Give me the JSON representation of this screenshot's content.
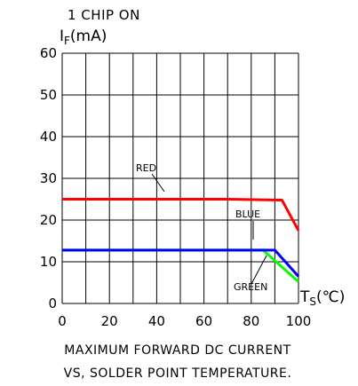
{
  "chart_data": {
    "type": "line",
    "header": "1 CHIP ON",
    "ylabel": "I",
    "ylabel_sub": "F",
    "ylabel_unit": "(mA)",
    "xlabel": "T",
    "xlabel_sub": "S",
    "xlabel_unit": "(℃)",
    "caption": [
      "MAXIMUM FORWARD DC CURRENT",
      "VS, SOLDER POINT TEMPERATURE."
    ],
    "xlim": [
      0,
      100
    ],
    "ylim": [
      0,
      60
    ],
    "x_ticks": [
      0,
      20,
      40,
      60,
      80,
      100
    ],
    "y_ticks": [
      0,
      10,
      20,
      30,
      40,
      50,
      60
    ],
    "grid": true,
    "series": [
      {
        "name": "RED",
        "color": "#ff0000",
        "x": [
          0,
          70,
          93,
          100
        ],
        "y": [
          25,
          25,
          24.8,
          17.5
        ]
      },
      {
        "name": "BLUE",
        "color": "#0000ff",
        "x": [
          0,
          90,
          100
        ],
        "y": [
          12.8,
          12.8,
          6.5
        ]
      },
      {
        "name": "GREEN",
        "color": "#00ff00",
        "x": [
          0,
          85,
          100
        ],
        "y": [
          12.8,
          12.8,
          5.2
        ]
      }
    ]
  }
}
